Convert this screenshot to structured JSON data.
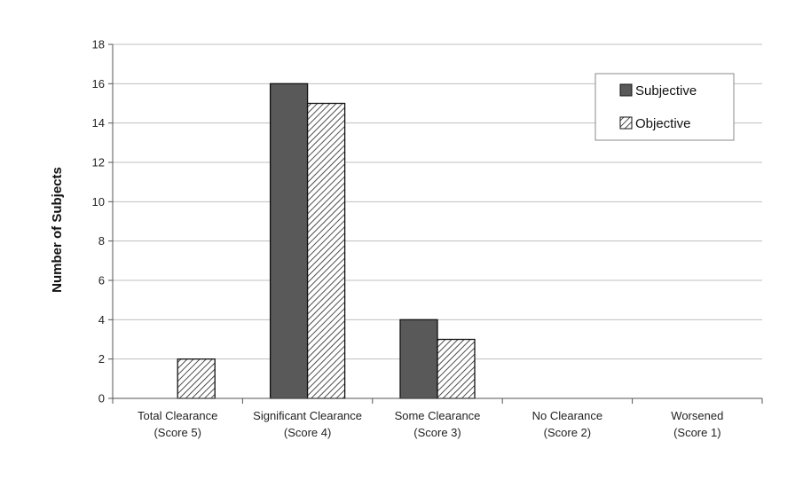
{
  "chart_data": {
    "type": "bar",
    "categories": [
      [
        "Total Clearance",
        "(Score 5)"
      ],
      [
        "Significant Clearance",
        "(Score 4)"
      ],
      [
        "Some Clearance",
        "(Score 3)"
      ],
      [
        "No Clearance",
        "(Score 2)"
      ],
      [
        "Worsened",
        "(Score 1)"
      ]
    ],
    "series": [
      {
        "name": "Subjective",
        "values": [
          0,
          16,
          4,
          0,
          0
        ],
        "fill": "#595959",
        "pattern": "solid"
      },
      {
        "name": "Objective",
        "values": [
          2,
          15,
          3,
          0,
          0
        ],
        "fill": "#ffffff",
        "pattern": "diagonal-hatch"
      }
    ],
    "ylabel": "Number of Subjects",
    "xlabel": "",
    "ylim": [
      0,
      18
    ],
    "yticks": [
      0,
      2,
      4,
      6,
      8,
      10,
      12,
      14,
      16,
      18
    ],
    "grid": true,
    "legend_position": "top-right"
  }
}
